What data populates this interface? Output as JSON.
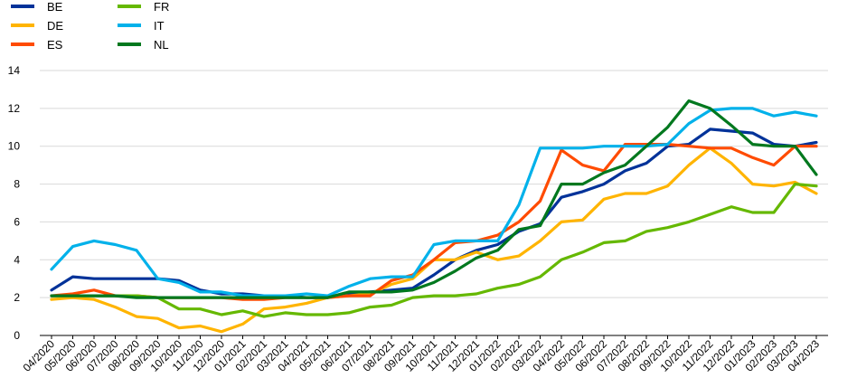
{
  "chart_data": {
    "type": "line",
    "title": "",
    "xlabel": "",
    "ylabel": "",
    "ylim": [
      0,
      14
    ],
    "yticks": [
      0,
      2,
      4,
      6,
      8,
      10,
      12,
      14
    ],
    "grid": "horizontal",
    "legend_position": "top-left",
    "categories": [
      "04/2020",
      "05/2020",
      "06/2020",
      "07/2020",
      "08/2020",
      "09/2020",
      "10/2020",
      "11/2020",
      "12/2020",
      "01/2021",
      "02/2021",
      "03/2021",
      "04/2021",
      "05/2021",
      "06/2021",
      "07/2021",
      "08/2021",
      "09/2021",
      "10/2021",
      "11/2021",
      "12/2021",
      "01/2022",
      "02/2022",
      "03/2022",
      "04/2022",
      "05/2022",
      "06/2022",
      "07/2022",
      "08/2022",
      "09/2022",
      "10/2022",
      "11/2022",
      "12/2022",
      "01/2023",
      "02/2023",
      "03/2023",
      "04/2023"
    ],
    "series": [
      {
        "name": "BE",
        "color": "#003299",
        "values": [
          2.4,
          3.1,
          3.0,
          3.0,
          3.0,
          3.0,
          2.9,
          2.4,
          2.2,
          2.2,
          2.1,
          2.1,
          2.0,
          2.0,
          2.2,
          2.3,
          2.4,
          2.5,
          3.2,
          4.0,
          4.5,
          4.8,
          5.5,
          5.9,
          7.3,
          7.6,
          8.0,
          8.7,
          9.1,
          10.0,
          10.1,
          10.9,
          10.8,
          10.7,
          10.1,
          10.0,
          10.2
        ]
      },
      {
        "name": "DE",
        "color": "#FFB400",
        "values": [
          1.9,
          2.0,
          1.9,
          1.5,
          1.0,
          0.9,
          0.4,
          0.5,
          0.2,
          0.6,
          1.4,
          1.5,
          1.7,
          2.0,
          2.1,
          2.2,
          2.7,
          3.0,
          4.0,
          4.0,
          4.4,
          4.0,
          4.2,
          5.0,
          6.0,
          6.1,
          7.2,
          7.5,
          7.5,
          7.9,
          9.0,
          9.9,
          9.1,
          8.0,
          7.9,
          8.1,
          7.5
        ]
      },
      {
        "name": "ES",
        "color": "#FF4B00",
        "values": [
          2.1,
          2.2,
          2.4,
          2.1,
          2.1,
          2.0,
          2.0,
          2.0,
          2.0,
          1.9,
          1.9,
          2.0,
          2.0,
          2.0,
          2.1,
          2.1,
          2.9,
          3.2,
          4.0,
          4.9,
          5.0,
          5.3,
          6.0,
          7.1,
          9.8,
          9.0,
          8.7,
          10.1,
          10.1,
          10.1,
          10.0,
          9.9,
          9.9,
          9.4,
          9.0,
          10.0,
          10.0
        ]
      },
      {
        "name": "FR",
        "color": "#65B800",
        "values": [
          2.1,
          2.1,
          2.1,
          2.1,
          2.1,
          2.0,
          1.4,
          1.4,
          1.1,
          1.3,
          1.0,
          1.2,
          1.1,
          1.1,
          1.2,
          1.5,
          1.6,
          2.0,
          2.1,
          2.1,
          2.2,
          2.5,
          2.7,
          3.1,
          4.0,
          4.4,
          4.9,
          5.0,
          5.5,
          5.7,
          6.0,
          6.4,
          6.8,
          6.5,
          6.5,
          8.0,
          7.9
        ]
      },
      {
        "name": "IT",
        "color": "#00B1EA",
        "values": [
          3.5,
          4.7,
          5.0,
          4.8,
          4.5,
          3.0,
          2.8,
          2.3,
          2.3,
          2.1,
          2.1,
          2.1,
          2.2,
          2.1,
          2.6,
          3.0,
          3.1,
          3.1,
          4.8,
          5.0,
          5.0,
          5.0,
          6.9,
          9.9,
          9.9,
          9.9,
          10.0,
          10.0,
          10.0,
          10.1,
          11.2,
          11.9,
          12.0,
          12.0,
          11.6,
          11.8,
          11.6
        ]
      },
      {
        "name": "NL",
        "color": "#00781E",
        "values": [
          2.1,
          2.1,
          2.1,
          2.1,
          2.0,
          2.0,
          2.0,
          2.0,
          2.0,
          2.0,
          2.0,
          2.0,
          2.0,
          2.0,
          2.3,
          2.3,
          2.3,
          2.4,
          2.8,
          3.4,
          4.1,
          4.5,
          5.6,
          5.8,
          8.0,
          8.0,
          8.6,
          9.0,
          10.0,
          11.0,
          12.4,
          12.0,
          11.1,
          10.1,
          10.0,
          10.0,
          8.5
        ]
      }
    ]
  }
}
